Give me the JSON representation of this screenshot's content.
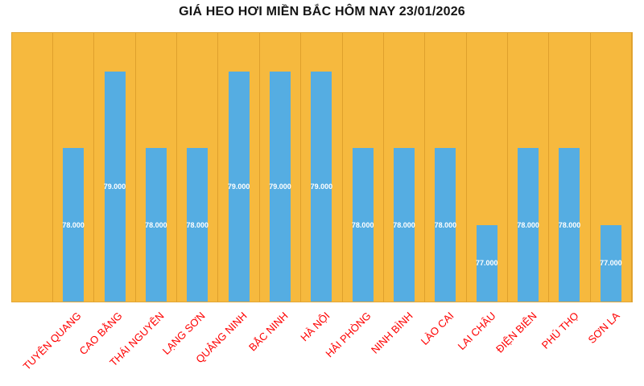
{
  "title": "GIÁ HEO HƠI MIỀN BẮC HÔM NAY 23/01/2026",
  "chart_data": {
    "type": "bar",
    "title": "GIÁ HEO HƠI MIỀN BẮC HÔM NAY 23/01/2026",
    "categories": [
      "TUYÊN QUANG",
      "CAO BẰNG",
      "THÁI NGUYÊN",
      "LẠNG SƠN",
      "QUẢNG NINH",
      "BẮC NINH",
      "HÀ NỘI",
      "HẢI PHÒNG",
      "NINH BÌNH",
      "LÀO CAI",
      "LAI CHÂU",
      "ĐIỆN BIÊN",
      "PHÚ THỌ",
      "SƠN LA"
    ],
    "values": [
      78000,
      79000,
      78000,
      78000,
      79000,
      79000,
      79000,
      78000,
      78000,
      78000,
      77000,
      78000,
      78000,
      77000
    ],
    "value_labels": [
      "78.000",
      "79.000",
      "78.000",
      "78.000",
      "79.000",
      "79.000",
      "79.000",
      "78.000",
      "78.000",
      "78.000",
      "77.000",
      "78.000",
      "78.000",
      "77.000"
    ],
    "xlabel": "",
    "ylabel": "",
    "ylim": [
      76000,
      79500
    ],
    "grid": "vertical-category-separators",
    "legend": "none",
    "colors": {
      "background": "#FFFFFF",
      "plot_background": "#F6B93E",
      "grid_line": "#DFA02C",
      "bar": "#55ADE2",
      "value_label": "#FFFFFF",
      "category_label": "#FE0000",
      "title": "#141414"
    }
  }
}
